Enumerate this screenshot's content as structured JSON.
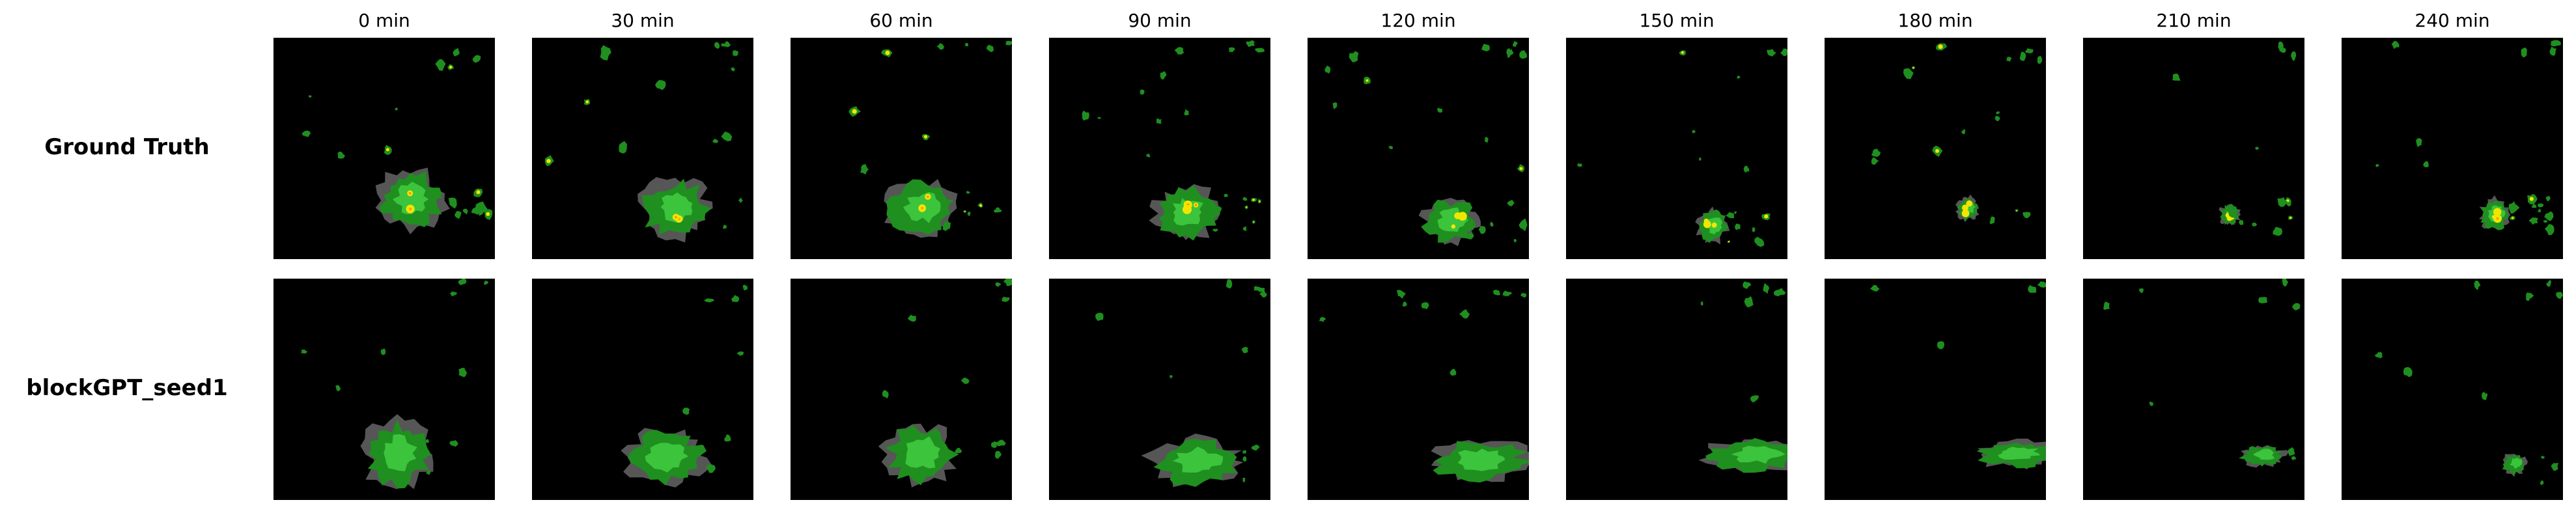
{
  "columns": [
    "0 min",
    "30 min",
    "60 min",
    "90 min",
    "120 min",
    "150 min",
    "180 min",
    "210 min",
    "240 min"
  ],
  "rows": [
    {
      "label": "Ground Truth",
      "key": "ground-truth"
    },
    {
      "label": "blockGPT_seed1",
      "key": "blockgpt-seed1"
    }
  ],
  "colors": {
    "background": "#000000",
    "rain_light": "#1f8f1f",
    "rain_medium": "#3cc43c",
    "rain_edge": "#6b6b6b",
    "rain_heavy": "#f2e600",
    "rain_core": "#ff9900"
  }
}
